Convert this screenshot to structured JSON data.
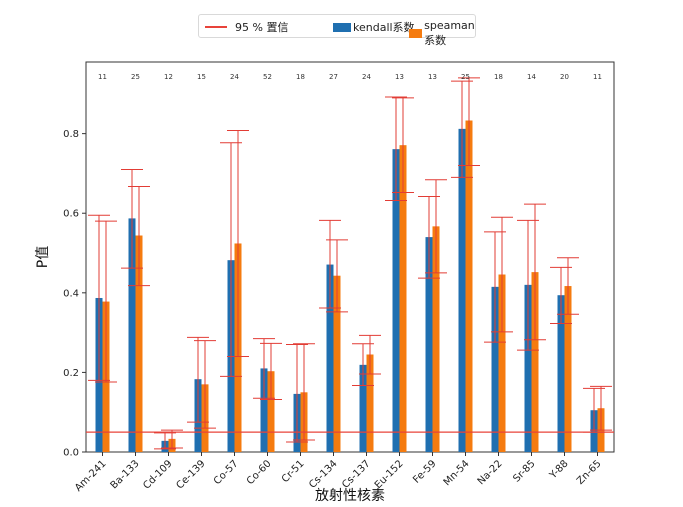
{
  "chart_data": {
    "type": "bar",
    "xlabel": "放射性核素",
    "ylabel": "P值",
    "ylim": [
      0,
      0.98
    ],
    "yticks": [
      "0.0",
      "0.2",
      "0.4",
      "0.6",
      "0.8"
    ],
    "categories": [
      "Am-241",
      "Ba-133",
      "Cd-109",
      "Ce-139",
      "Co-57",
      "Co-60",
      "Cr-51",
      "Cs-134",
      "Cs-137",
      "Eu-152",
      "Fe-59",
      "Mn-54",
      "Na-22",
      "Sr-85",
      "Y-88",
      "Zn-65"
    ],
    "sample_counts": [
      "11",
      "25",
      "12",
      "15",
      "24",
      "52",
      "18",
      "27",
      "24",
      "13",
      "13",
      "25",
      "18",
      "14",
      "20",
      "11"
    ],
    "series": [
      {
        "name": "kendall系数",
        "color": "#1f6fb0",
        "values": [
          0.387,
          0.587,
          0.028,
          0.183,
          0.482,
          0.21,
          0.146,
          0.471,
          0.219,
          0.761,
          0.54,
          0.812,
          0.415,
          0.42,
          0.394,
          0.105
        ],
        "ci_low": [
          0.18,
          0.462,
          0.008,
          0.075,
          0.19,
          0.135,
          0.025,
          0.362,
          0.167,
          0.632,
          0.437,
          0.69,
          0.276,
          0.256,
          0.323,
          0.05
        ],
        "ci_high": [
          0.595,
          0.71,
          0.048,
          0.288,
          0.777,
          0.285,
          0.27,
          0.582,
          0.272,
          0.892,
          0.642,
          0.932,
          0.553,
          0.582,
          0.464,
          0.16
        ]
      },
      {
        "name": "speaman 系数",
        "color": "#f57b0f",
        "values": [
          0.378,
          0.544,
          0.033,
          0.17,
          0.524,
          0.203,
          0.15,
          0.443,
          0.245,
          0.771,
          0.567,
          0.833,
          0.446,
          0.452,
          0.417,
          0.11
        ],
        "ci_low": [
          0.176,
          0.418,
          0.01,
          0.06,
          0.24,
          0.132,
          0.03,
          0.352,
          0.196,
          0.652,
          0.45,
          0.72,
          0.302,
          0.282,
          0.346,
          0.055
        ],
        "ci_high": [
          0.58,
          0.667,
          0.055,
          0.28,
          0.808,
          0.273,
          0.272,
          0.533,
          0.293,
          0.89,
          0.684,
          0.94,
          0.59,
          0.623,
          0.488,
          0.165
        ]
      }
    ],
    "threshold": {
      "value": 0.05,
      "name": "95 %  置信",
      "color": "#e8433a"
    },
    "grid": false,
    "legend_position": "top-center"
  }
}
